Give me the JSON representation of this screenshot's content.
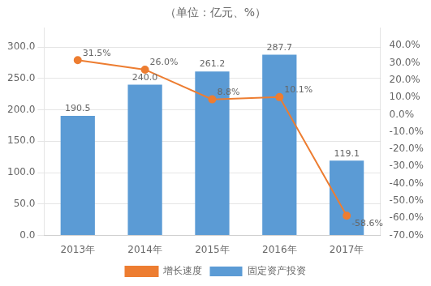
{
  "chart_data": {
    "type": "bar",
    "title": "（单位：亿元、%）",
    "categories": [
      "2013年",
      "2014年",
      "2015年",
      "2016年",
      "2017年"
    ],
    "series": [
      {
        "name": "固定资产投资",
        "type": "bar",
        "color": "#5B9BD5",
        "values": [
          190.5,
          240.0,
          261.2,
          287.7,
          119.1
        ],
        "value_labels": [
          "190.5",
          "240.0",
          "261.2",
          "287.7",
          "119.1"
        ]
      },
      {
        "name": "增长速度",
        "type": "line",
        "axis": "y2",
        "color": "#ED7D31",
        "marker": "circle",
        "values": [
          31.5,
          26.0,
          8.8,
          10.1,
          -58.6
        ],
        "value_labels": [
          "31.5%",
          "26.0%",
          "8.8%",
          "10.1%",
          "-58.6%"
        ]
      }
    ],
    "ylim": [
      0,
      330
    ],
    "yticks": [
      {
        "value": 0,
        "label": "0.0"
      },
      {
        "value": 50,
        "label": "50.0"
      },
      {
        "value": 100,
        "label": "100.0"
      },
      {
        "value": 150,
        "label": "150.0"
      },
      {
        "value": 200,
        "label": "200.0"
      },
      {
        "value": 250,
        "label": "250.0"
      },
      {
        "value": 300,
        "label": "300.0"
      }
    ],
    "y2lim": [
      -70,
      50
    ],
    "y2ticks": [
      {
        "value": -70,
        "label": "-70.0%"
      },
      {
        "value": -60,
        "label": "-60.0%"
      },
      {
        "value": -50,
        "label": "-50.0%"
      },
      {
        "value": -40,
        "label": "-40.0%"
      },
      {
        "value": -30,
        "label": "-30.0%"
      },
      {
        "value": -20,
        "label": "-20.0%"
      },
      {
        "value": -10,
        "label": "-10.0%"
      },
      {
        "value": 0,
        "label": "0.0%"
      },
      {
        "value": 10,
        "label": "10.0%"
      },
      {
        "value": 20,
        "label": "20.0%"
      },
      {
        "value": 30,
        "label": "30.0%"
      },
      {
        "value": 40,
        "label": "40.0%"
      }
    ],
    "grid": true,
    "legend": "bottom",
    "data_labels": true
  }
}
